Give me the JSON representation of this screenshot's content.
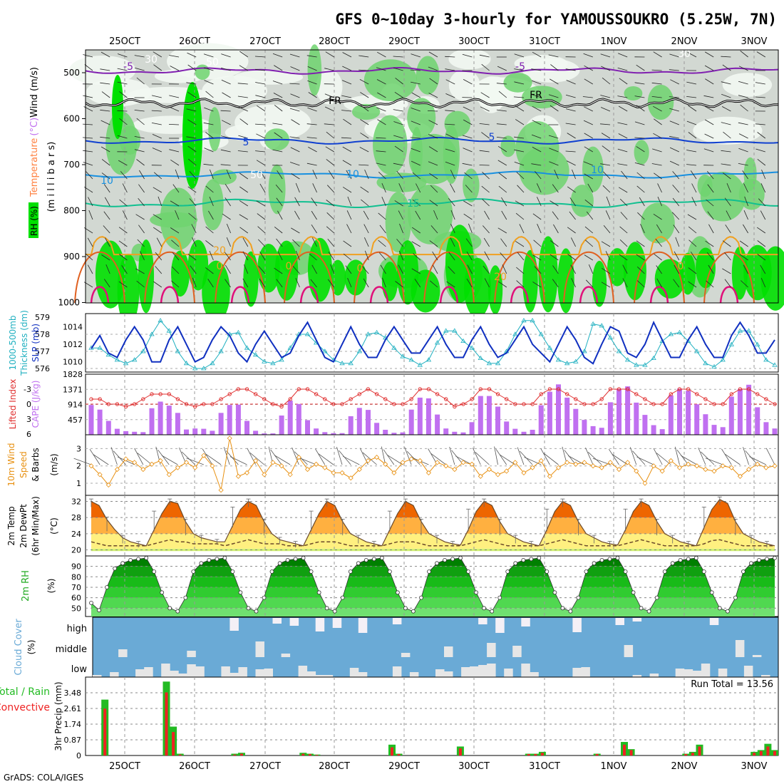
{
  "title": "GFS 0~10day 3-hourly for YAMOUSSOUKRO (5.25W, 7N)",
  "footer": "GrADS: COLA/IGES",
  "dates": [
    "25OCT",
    "26OCT",
    "27OCT",
    "28OCT",
    "29OCT",
    "30OCT",
    "31OCT",
    "1NOV",
    "2NOV",
    "3NOV"
  ],
  "colors": {
    "rh_green": "#00e000",
    "temp_dark": "#ee6600",
    "temp_mid": "#f8a030",
    "temp_light": "#ffd870",
    "dew": "#6b4a2a",
    "cloud_blue": "#6aaad6",
    "cloud_gray": "#e6e6e6",
    "precip_total": "#22bb22",
    "precip_conv": "#ee2222",
    "cape": "#c070f0",
    "li": "#e03030",
    "wind": "#e89010",
    "slp": "#1030c0",
    "thick": "#20b0c0"
  },
  "panels": {
    "upper": {
      "ylabel": "Temperature (°C)Wind (m/s)",
      "ylabel_a": "Temperature",
      "ylabel_b": "(°C)",
      "ylabel_c": "Wind (m/s)",
      "ylabel_units": "(m i l l i b a r s)",
      "rh_label": "RH (%)",
      "yticks": [
        "500",
        "600",
        "700",
        "800",
        "900",
        "1000"
      ],
      "contour_labels": [
        "-5",
        "-5",
        "FR",
        "FR",
        "5",
        "5",
        "10",
        "10",
        "15",
        "20",
        "20",
        "0",
        "0",
        "0",
        "0",
        "30",
        "50",
        "50",
        "30",
        "10"
      ]
    },
    "slp": {
      "ylabel_left1": "1000-500mb",
      "ylabel_left2": "Thickness (dm)",
      "ylabel_right": "SLP (mb)",
      "yticks_left": [
        "579",
        "578",
        "577",
        "576"
      ],
      "yticks_right": [
        "1014",
        "1012",
        "1010"
      ]
    },
    "cape": {
      "ylabel_left": "Lifted Index",
      "ylabel_right": "CAPE (J/kg)",
      "yticks_left": [
        "-3",
        "0",
        "3",
        "6"
      ],
      "yticks_right": [
        "1828",
        "1371",
        "914",
        "457"
      ]
    },
    "wind10": {
      "ylabel1": "10m Wind",
      "ylabel2": "Speed",
      "ylabel3": "& Barbs",
      "units": "(m/s)",
      "yticks": [
        "3",
        "2",
        "1"
      ]
    },
    "temp2m": {
      "ylabel1": "2m Temp",
      "ylabel2": "2m DewPt",
      "ylabel3": "(6hr Min/Max)",
      "units": "(°C)",
      "yticks": [
        "32",
        "28",
        "24",
        "20"
      ]
    },
    "rh2m": {
      "ylabel": "2m RH",
      "units": "(%)",
      "yticks": [
        "90",
        "80",
        "70",
        "60",
        "50"
      ]
    },
    "cloud": {
      "ylabel": "Cloud Cover",
      "units": "(%)",
      "levels": [
        "high",
        "middle",
        "low"
      ]
    },
    "precip": {
      "ylabel_a": "Total / Rain",
      "ylabel_b": "Convective",
      "ylabel_c": "3hr Precip (mm)",
      "yticks": [
        "3.48",
        "2.61",
        "1.74",
        "0.87",
        "0"
      ],
      "run_total": "Run Total = 13.56"
    }
  },
  "chart_data": [
    {
      "type": "heatmap",
      "name": "Upper-air RH, temperature and wind",
      "y_unit": "mb",
      "y_range": [
        1000,
        450
      ],
      "x": "3-hourly steps 24OCT 18Z - 3NOV"
    },
    {
      "type": "line",
      "name": "SLP / Thickness",
      "series": [
        {
          "name": "SLP (mb)",
          "values": [
            1011.5,
            1013,
            1011,
            1010.5,
            1012.5,
            1014,
            1012.5,
            1010,
            1010,
            1012.5,
            1014,
            1012,
            1010,
            1010.5,
            1012.5,
            1014,
            1013,
            1011,
            1010,
            1012,
            1013.5,
            1012,
            1010.5,
            1011,
            1013,
            1014.5,
            1012.5,
            1010.5,
            1010,
            1012,
            1014,
            1012,
            1010.5,
            1010.5,
            1012.5,
            1014,
            1012.5,
            1011,
            1011,
            1012.5,
            1014,
            1012,
            1010.5,
            1010.5,
            1012.5,
            1014,
            1012,
            1010.5,
            1011,
            1012.5,
            1014,
            1012,
            1011,
            1010,
            1012,
            1014,
            1012.5,
            1010.5,
            1009.8,
            1012,
            1014,
            1013.5,
            1011,
            1010.5,
            1012,
            1014.5,
            1012.5,
            1010.5,
            1010.5,
            1012.5,
            1014,
            1012,
            1010.5,
            1010.5,
            1013,
            1014.5,
            1013,
            1011,
            1011,
            1012.5
          ]
        },
        {
          "name": "Thickness (dm)",
          "values": [
            577.2,
            577.2,
            576.8,
            576.5,
            576.3,
            576.5,
            577,
            578,
            578.8,
            578.2,
            577,
            576.3,
            576,
            576,
            576.3,
            577,
            578,
            578.1,
            577.2,
            576.8,
            576.4,
            576.3,
            576.5,
            577.2,
            578,
            578,
            577.5,
            577,
            576.5,
            576.3,
            576.3,
            577,
            578,
            578.1,
            577.8,
            577.2,
            576.7,
            576.5,
            576.2,
            576.5,
            577.5,
            578.2,
            578.2,
            577.6,
            577.2,
            576.6,
            576.3,
            576.3,
            577,
            578,
            578.8,
            578.8,
            578,
            577.2,
            576.5,
            576.3,
            576.4,
            577,
            578.6,
            578.5,
            577.8,
            577,
            576.5,
            576.2,
            576.2,
            576.6,
            577.6,
            578,
            578.1,
            577.6,
            577,
            576.3,
            576.1,
            576.5,
            577.4,
            578.2,
            578.2,
            577.4,
            576.5,
            576.2
          ]
        }
      ]
    },
    {
      "type": "bar",
      "name": "CAPE / Lifted Index",
      "series": [
        {
          "name": "CAPE (J/kg)",
          "values": [
            900,
            760,
            420,
            180,
            110,
            90,
            80,
            800,
            1000,
            880,
            660,
            160,
            190,
            180,
            120,
            660,
            900,
            910,
            420,
            120,
            40,
            40,
            580,
            1030,
            930,
            440,
            190,
            80,
            50,
            50,
            560,
            810,
            750,
            360,
            150,
            60,
            70,
            760,
            1120,
            1100,
            610,
            190,
            90,
            70,
            380,
            1170,
            1170,
            850,
            400,
            180,
            90,
            150,
            890,
            1300,
            1520,
            1120,
            780,
            450,
            260,
            210,
            980,
            1390,
            1460,
            970,
            600,
            290,
            170,
            1190,
            1390,
            1330,
            920,
            620,
            300,
            230,
            1150,
            1380,
            1510,
            830,
            380,
            190
          ]
        },
        {
          "name": "Lifted Index",
          "values": [
            -1,
            -1,
            0,
            0,
            0.5,
            0,
            -1,
            -2,
            -2,
            -2,
            -1,
            0,
            0.5,
            0,
            0,
            -1,
            -2,
            -3,
            -3,
            -2,
            -1,
            0,
            0.5,
            -1,
            -3,
            -3,
            -2,
            -1,
            0,
            0,
            -1,
            -2,
            -3,
            -2,
            -1,
            0,
            0,
            -1,
            -3,
            -3,
            -2,
            -1,
            0.5,
            0,
            -1,
            -3,
            -3,
            -2,
            -1,
            0,
            0,
            0,
            -2,
            -3,
            -3,
            -2,
            -1,
            0,
            0,
            -1,
            -3,
            -3,
            -3,
            -2,
            -1,
            0,
            0,
            -2,
            -3,
            -3,
            -2,
            -1,
            0,
            0,
            -2,
            -3,
            -3,
            -2,
            -1,
            0
          ]
        }
      ]
    },
    {
      "type": "line",
      "name": "10m Wind Speed",
      "series": [
        {
          "name": "10m Wind Speed (m/s)",
          "values": [
            2,
            1.5,
            0.9,
            1.8,
            2.4,
            2.2,
            1.8,
            2.1,
            2.3,
            1.5,
            1.9,
            2.2,
            1.9,
            2.6,
            2.0,
            0.6,
            3.6,
            1.4,
            1.6,
            2.3,
            1.5,
            2.2,
            2.0,
            1.5,
            2.5,
            1.8,
            2.1,
            1.9,
            1.6,
            1.6,
            1.3,
            1.8,
            2.3,
            2.5,
            2.1,
            1.6,
            2.2,
            2.4,
            2.3,
            1.6,
            2.2,
            2.0,
            1.8,
            2.2,
            2.1,
            1.4,
            1.8,
            1.5,
            1.7,
            2.2,
            1.6,
            1.9,
            2.3,
            1.4,
            1.9,
            2.2,
            2.1,
            2.2,
            2.0,
            1.9,
            2.2,
            1.8,
            2.2,
            1.7,
            1.0,
            2.0,
            1.7,
            2.3,
            1.9,
            2.1,
            2.0,
            1.8,
            1.7,
            2.0,
            1.9,
            1.4,
            1.8,
            2.1,
            1.9,
            2.0
          ]
        }
      ]
    },
    {
      "type": "area",
      "name": "2m Temp / DewPt",
      "series": [
        {
          "name": "2m Temp (°C)",
          "values": [
            32,
            31,
            27.5,
            25,
            23,
            22,
            21.5,
            21,
            25,
            29,
            32,
            31.5,
            27,
            24,
            23,
            22.5,
            22,
            22,
            26,
            30,
            32,
            31,
            27,
            24,
            22.5,
            22,
            21.5,
            21,
            25,
            29,
            32,
            31,
            27,
            24,
            23,
            22,
            21.5,
            21,
            25,
            29,
            32,
            31,
            27,
            24,
            23,
            22,
            21.5,
            21.2,
            25,
            29.5,
            32,
            31,
            27,
            24,
            23,
            22,
            21.5,
            21,
            25,
            29.5,
            32,
            31,
            27,
            24,
            23,
            22,
            21.5,
            21.2,
            25,
            29.5,
            32,
            31,
            27,
            24,
            23,
            22,
            21.5,
            21,
            25.5,
            30,
            32.5,
            31.5,
            27,
            24,
            23,
            22,
            21.5,
            21
          ]
        },
        {
          "name": "2m DewPt (°C)",
          "values": [
            22,
            21.5,
            21,
            21,
            21,
            21,
            21,
            21,
            21.5,
            22,
            22.5,
            22,
            22,
            21.5,
            21.5,
            21.5,
            21.5,
            21,
            21.5,
            22,
            22.5,
            22,
            21.5,
            21.5,
            21.5,
            21,
            21,
            21,
            21.5,
            22,
            22,
            22,
            21.5,
            21,
            21,
            21,
            21,
            21,
            21.5,
            22,
            22,
            22,
            21.5,
            21,
            21,
            21,
            21,
            21,
            21.5,
            22,
            22.5,
            22,
            21.5,
            21,
            21,
            21,
            21,
            21,
            21.5,
            22,
            22.5,
            22,
            21.5,
            21,
            21,
            21,
            21,
            21,
            21.5,
            22,
            22.5,
            22,
            21.5,
            21,
            21,
            21,
            21,
            21,
            21.5,
            22.3,
            22.5,
            22,
            21.5,
            21,
            21,
            21,
            21,
            21
          ]
        }
      ]
    },
    {
      "type": "area",
      "name": "2m RH",
      "series": [
        {
          "name": "2m RH (%)",
          "values": [
            55,
            48,
            70,
            88,
            93,
            96,
            97,
            98,
            85,
            65,
            50,
            47,
            60,
            85,
            93,
            96,
            97,
            98,
            85,
            65,
            50,
            47,
            60,
            85,
            93,
            96,
            97,
            98,
            85,
            65,
            50,
            47,
            60,
            85,
            93,
            96,
            97,
            98,
            85,
            65,
            50,
            47,
            60,
            85,
            93,
            96,
            97,
            98,
            85,
            65,
            50,
            47,
            60,
            85,
            93,
            96,
            97,
            98,
            85,
            65,
            50,
            47,
            60,
            85,
            93,
            96,
            97,
            98,
            85,
            65,
            50,
            47,
            60,
            85,
            93,
            96,
            97,
            98,
            85,
            65,
            50,
            47,
            60,
            85,
            93,
            96,
            97,
            98
          ]
        }
      ]
    },
    {
      "type": "bar",
      "name": "Cloud Cover",
      "categories": [
        "high",
        "middle",
        "low"
      ]
    },
    {
      "type": "bar",
      "name": "3hr Precip",
      "series": [
        {
          "name": "Total / Rain (mm)",
          "values": [
            0,
            0,
            3.1,
            0,
            0,
            0,
            0,
            0,
            0,
            0,
            0,
            4.1,
            1.6,
            0.1,
            0,
            0,
            0,
            0,
            0,
            0,
            0,
            0.1,
            0.15,
            0,
            0,
            0,
            0,
            0,
            0,
            0,
            0,
            0.15,
            0.1,
            0.05,
            0,
            0,
            0,
            0,
            0,
            0,
            0,
            0,
            0,
            0,
            0.6,
            0.1,
            0,
            0,
            0,
            0,
            0,
            0,
            0,
            0,
            0.5,
            0,
            0,
            0,
            0,
            0,
            0,
            0,
            0,
            0,
            0.1,
            0.1,
            0.2,
            0,
            0,
            0,
            0,
            0,
            0,
            0,
            0.1,
            0,
            0,
            0,
            0.75,
            0.35,
            0,
            0,
            0,
            0,
            0,
            0,
            0,
            0.1,
            0.2,
            0.6,
            0,
            0,
            0,
            0,
            0,
            0,
            0,
            0.2,
            0.3,
            0.65,
            0.3
          ]
        },
        {
          "name": "Convective (mm)",
          "values": [
            0,
            0,
            2.6,
            0,
            0,
            0,
            0,
            0,
            0,
            0,
            0,
            3.5,
            1.3,
            0.05,
            0,
            0,
            0,
            0,
            0,
            0,
            0,
            0.05,
            0.1,
            0,
            0,
            0,
            0,
            0,
            0,
            0,
            0,
            0.1,
            0.08,
            0.03,
            0,
            0,
            0,
            0,
            0,
            0,
            0,
            0,
            0,
            0,
            0.45,
            0.08,
            0,
            0,
            0,
            0,
            0,
            0,
            0,
            0,
            0.4,
            0,
            0,
            0,
            0,
            0,
            0,
            0,
            0,
            0,
            0.08,
            0.08,
            0.15,
            0,
            0,
            0,
            0,
            0,
            0,
            0,
            0.08,
            0,
            0,
            0,
            0.6,
            0.3,
            0,
            0,
            0,
            0,
            0,
            0,
            0,
            0.08,
            0.15,
            0.5,
            0,
            0,
            0,
            0,
            0,
            0,
            0,
            0.15,
            0.25,
            0.5,
            0.25
          ]
        }
      ]
    }
  ]
}
